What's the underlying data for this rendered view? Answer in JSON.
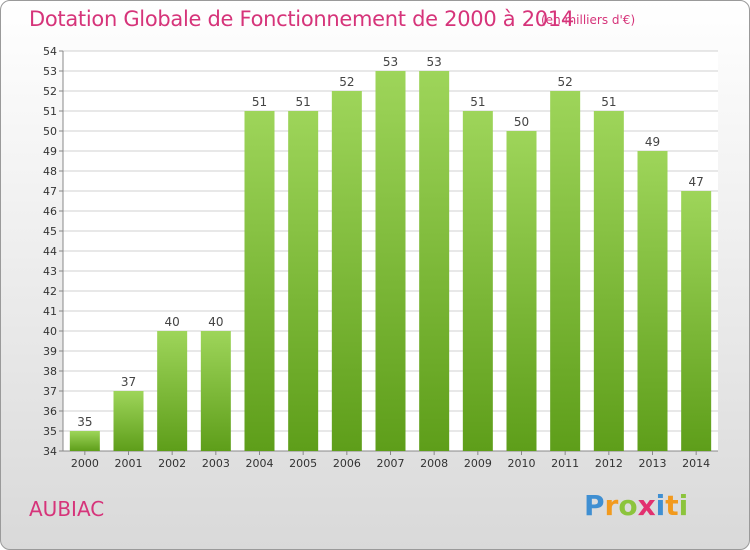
{
  "header": {
    "title": "Dotation Globale de Fonctionnement de 2000 à 2014",
    "subtitle": "(en milliers d'€)"
  },
  "footer": {
    "commune": "AUBIAC",
    "brand": {
      "text": "Proxiti",
      "letters": [
        {
          "ch": "P",
          "color": "#3f8fd2"
        },
        {
          "ch": "r",
          "color": "#f29a1e"
        },
        {
          "ch": "o",
          "color": "#8cc43c"
        },
        {
          "ch": "x",
          "color": "#e2306f"
        },
        {
          "ch": "i",
          "color": "#3f8fd2"
        },
        {
          "ch": "t",
          "color": "#f29a1e"
        },
        {
          "ch": "i",
          "color": "#8cc43c"
        }
      ]
    }
  },
  "colors": {
    "accent": "#d6347a",
    "bar_top": "#9ed55a",
    "bar_bottom": "#5e9e1a",
    "grid": "#d0d0d0"
  },
  "chart_data": {
    "type": "bar",
    "title": "Dotation Globale de Fonctionnement de 2000 à 2014",
    "subtitle": "(en milliers d'€)",
    "categories": [
      "2000",
      "2001",
      "2002",
      "2003",
      "2004",
      "2005",
      "2006",
      "2007",
      "2008",
      "2009",
      "2010",
      "2011",
      "2012",
      "2013",
      "2014"
    ],
    "values": [
      35,
      37,
      40,
      40,
      51,
      51,
      52,
      53,
      53,
      51,
      50,
      52,
      51,
      49,
      47
    ],
    "ylim": [
      34,
      54
    ],
    "yticks": [
      34,
      35,
      36,
      37,
      38,
      39,
      40,
      41,
      42,
      43,
      44,
      45,
      46,
      47,
      48,
      49,
      50,
      51,
      52,
      53,
      54
    ],
    "grid": true,
    "legend": "none",
    "xlabel": "",
    "ylabel": ""
  }
}
